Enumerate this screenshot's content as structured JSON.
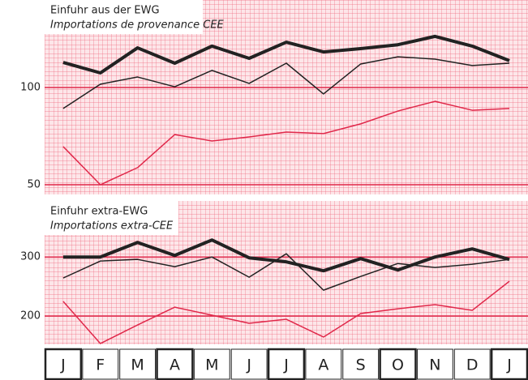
{
  "chart_data": [
    {
      "type": "line",
      "title": "Einfuhr aus der EWG",
      "subtitle": "Importations de provenance CEE",
      "ylim": [
        45,
        145
      ],
      "yticks": [
        50,
        100
      ],
      "grid": true,
      "series": [
        {
          "color": "#222222",
          "line_width": 4,
          "values": [
            112.9,
            107.5,
            120.4,
            112.5,
            121.3,
            115,
            123.3,
            118.3,
            120,
            122,
            126.3,
            121.3,
            113.8
          ]
        },
        {
          "color": "#222222",
          "line_width": 1.5,
          "values": [
            89.2,
            101.7,
            105.4,
            100.4,
            108.8,
            102.1,
            112.5,
            96.7,
            112.1,
            115.8,
            114.6,
            111.3,
            112.5
          ]
        },
        {
          "color": "#e0284a",
          "line_width": 1.5,
          "values": [
            69.6,
            50,
            58.8,
            75.8,
            72.5,
            74.6,
            77.1,
            76.3,
            81.3,
            87.9,
            92.9,
            88.3,
            89.2
          ]
        }
      ]
    },
    {
      "type": "line",
      "title": "Einfuhr extra-EWG",
      "subtitle": "Importations extra-CEE",
      "categories": [
        "J",
        "F",
        "M",
        "A",
        "M",
        "J",
        "J",
        "A",
        "S",
        "O",
        "N",
        "D",
        "J"
      ],
      "ylim": [
        152,
        395
      ],
      "yticks": [
        200,
        300
      ],
      "grid": true,
      "series": [
        {
          "color": "#222222",
          "line_width": 4,
          "values": [
            300,
            300,
            324.7,
            302.7,
            328.8,
            298.6,
            291.8,
            276.7,
            297.3,
            278,
            300,
            313.7,
            295.9
          ]
        },
        {
          "color": "#222222",
          "line_width": 1.5,
          "values": [
            264.4,
            293.2,
            295.9,
            283.6,
            300,
            265.8,
            305.5,
            243.8,
            267.1,
            289,
            282.2,
            287.7,
            295.9
          ]
        },
        {
          "color": "#e0284a",
          "line_width": 1.5,
          "values": [
            224.7,
            153.4,
            184.9,
            215,
            201.4,
            187.7,
            194.5,
            164.4,
            204.1,
            212.3,
            219.2,
            209.6,
            258.9
          ]
        }
      ]
    }
  ]
}
